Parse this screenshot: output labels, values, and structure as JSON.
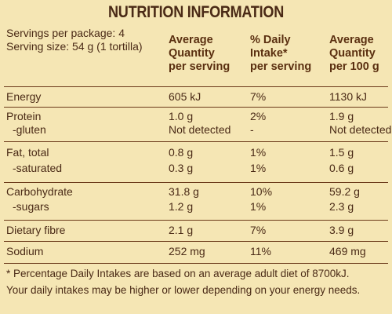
{
  "title": "NUTRITION INFORMATION",
  "servings_per_package": "Servings per package: 4",
  "serving_size": "Serving size: 54 g (1  tortilla)",
  "headers": {
    "avg_serving": [
      "Average",
      "Quantity",
      "per serving"
    ],
    "daily_intake": [
      "% Daily",
      "Intake*",
      "per serving"
    ],
    "per_100g": [
      "Average",
      "Quantity",
      "per 100 g"
    ]
  },
  "rows": {
    "energy": {
      "label": "Energy",
      "serving": "605 kJ",
      "di": "7%",
      "per100": "1130 kJ"
    },
    "protein": {
      "label": "Protein",
      "serving": "1.0 g",
      "di": "2%",
      "per100": "1.9 g"
    },
    "gluten": {
      "label": "-gluten",
      "serving": "Not detected",
      "di": "-",
      "per100": "Not detected"
    },
    "fat": {
      "label": "Fat, total",
      "serving": "0.8 g",
      "di": "1%",
      "per100": "1.5 g"
    },
    "saturated": {
      "label": "-saturated",
      "serving": "0.3 g",
      "di": "1%",
      "per100": "0.6 g"
    },
    "carb": {
      "label": "Carbohydrate",
      "serving": "31.8 g",
      "di": "10%",
      "per100": "59.2 g"
    },
    "sugars": {
      "label": "-sugars",
      "serving": "1.2 g",
      "di": "1%",
      "per100": "2.3 g"
    },
    "fibre": {
      "label": "Dietary fibre",
      "serving": "2.1 g",
      "di": "7%",
      "per100": "3.9 g"
    },
    "sodium": {
      "label": "Sodium",
      "serving": "252 mg",
      "di": "11%",
      "per100": "469 mg"
    }
  },
  "footnote_1": "* Percentage Daily Intakes are based on an average adult diet of 8700kJ.",
  "footnote_2": "Your daily intakes may be higher or lower depending on your energy needs."
}
